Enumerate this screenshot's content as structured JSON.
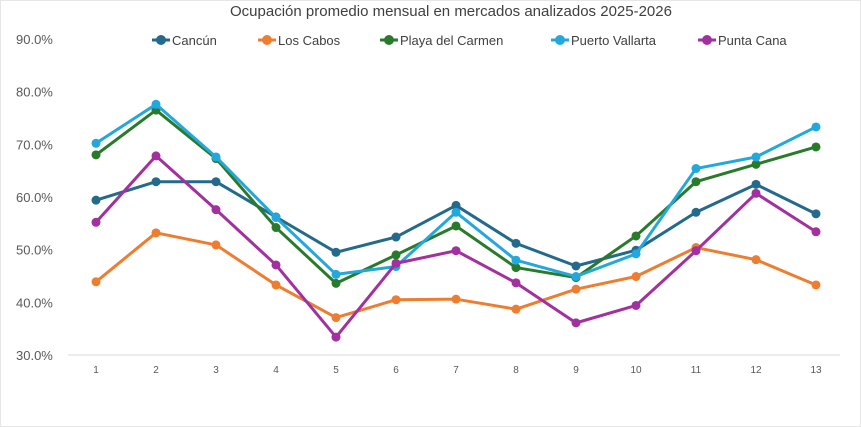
{
  "chart_data": {
    "type": "line",
    "title": "Ocupación promedio mensual en mercados analizados 2025-2026",
    "xlabel": "",
    "ylabel": "",
    "x": [
      1,
      2,
      3,
      4,
      5,
      6,
      7,
      8,
      9,
      10,
      11,
      12,
      13
    ],
    "ylim": [
      30,
      90
    ],
    "yticks": [
      "30.0%",
      "40.0%",
      "50.0%",
      "60.0%",
      "70.0%",
      "80.0%",
      "90.0%"
    ],
    "grid": false,
    "legend_position": "top",
    "series": [
      {
        "name": "Cancún",
        "color": "#236a8c",
        "values": [
          59.4,
          62.9,
          62.9,
          56.2,
          49.5,
          52.4,
          58.4,
          51.2,
          46.9,
          49.9,
          57.1,
          62.4,
          56.8
        ]
      },
      {
        "name": "Los Cabos",
        "color": "#ed7d31",
        "values": [
          43.9,
          53.2,
          50.9,
          43.3,
          37.1,
          40.5,
          40.6,
          38.7,
          42.5,
          44.9,
          50.4,
          48.1,
          43.3
        ]
      },
      {
        "name": "Playa del Carmen",
        "color": "#2a7a2c",
        "values": [
          68.0,
          76.5,
          67.3,
          54.2,
          43.6,
          49.0,
          54.5,
          46.6,
          44.7,
          52.6,
          62.9,
          66.2,
          69.5
        ]
      },
      {
        "name": "Puerto Vallarta",
        "color": "#22a8dc",
        "values": [
          70.2,
          77.6,
          67.6,
          56.1,
          45.3,
          46.8,
          57.1,
          48.0,
          44.9,
          49.2,
          65.4,
          67.6,
          73.3
        ]
      },
      {
        "name": "Punta Cana",
        "color": "#a2309f",
        "values": [
          55.2,
          67.8,
          57.6,
          47.1,
          33.4,
          47.4,
          49.8,
          43.7,
          36.1,
          39.4,
          49.8,
          60.7,
          53.4
        ]
      }
    ]
  }
}
